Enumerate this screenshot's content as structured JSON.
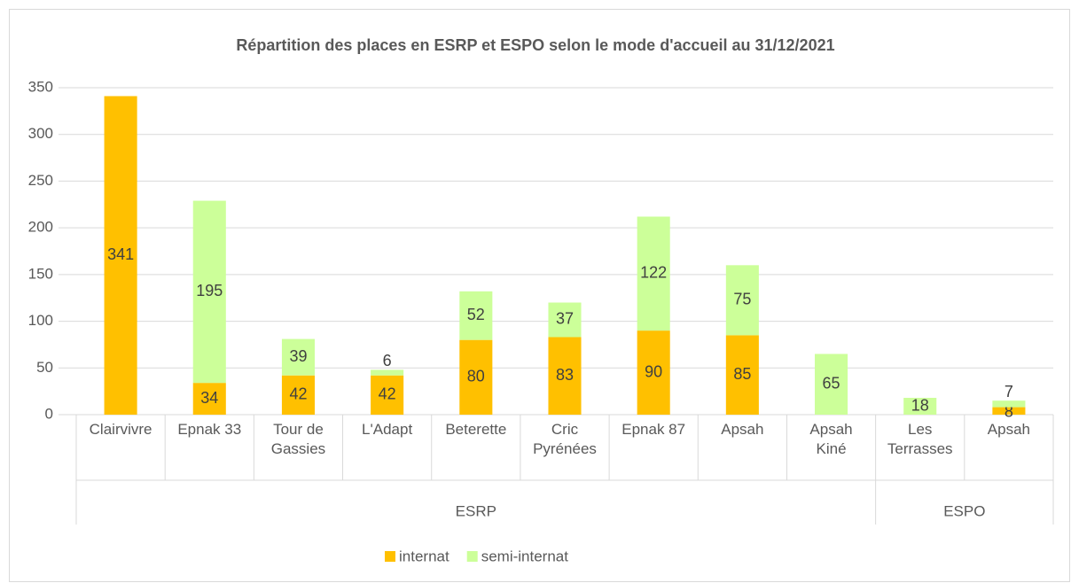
{
  "chart_data": {
    "type": "stacked_bar",
    "title": "Répartition des places en ESRP et ESPO selon le mode d'accueil au 31/12/2021",
    "groups": [
      {
        "name": "ESRP",
        "categories": [
          "Clairvivre",
          "Epnak 33",
          "Tour de Gassies",
          "L'Adapt",
          "Beterette",
          "Cric Pyrénées",
          "Epnak 87",
          "Apsah",
          "Apsah Kiné"
        ]
      },
      {
        "name": "ESPO",
        "categories": [
          "Les Terrasses",
          "Apsah"
        ]
      }
    ],
    "series": [
      {
        "name": "internat",
        "color": "#ffc000",
        "values": [
          341,
          34,
          42,
          42,
          80,
          83,
          90,
          85,
          null,
          null,
          8
        ]
      },
      {
        "name": "semi-internat",
        "color": "#ccff99",
        "values": [
          null,
          195,
          39,
          6,
          52,
          37,
          122,
          75,
          65,
          18,
          7
        ]
      }
    ],
    "ylim": [
      0,
      350
    ],
    "yticks": [
      0,
      50,
      100,
      150,
      200,
      250,
      300,
      350
    ],
    "grid": true,
    "legend": "bottom"
  }
}
